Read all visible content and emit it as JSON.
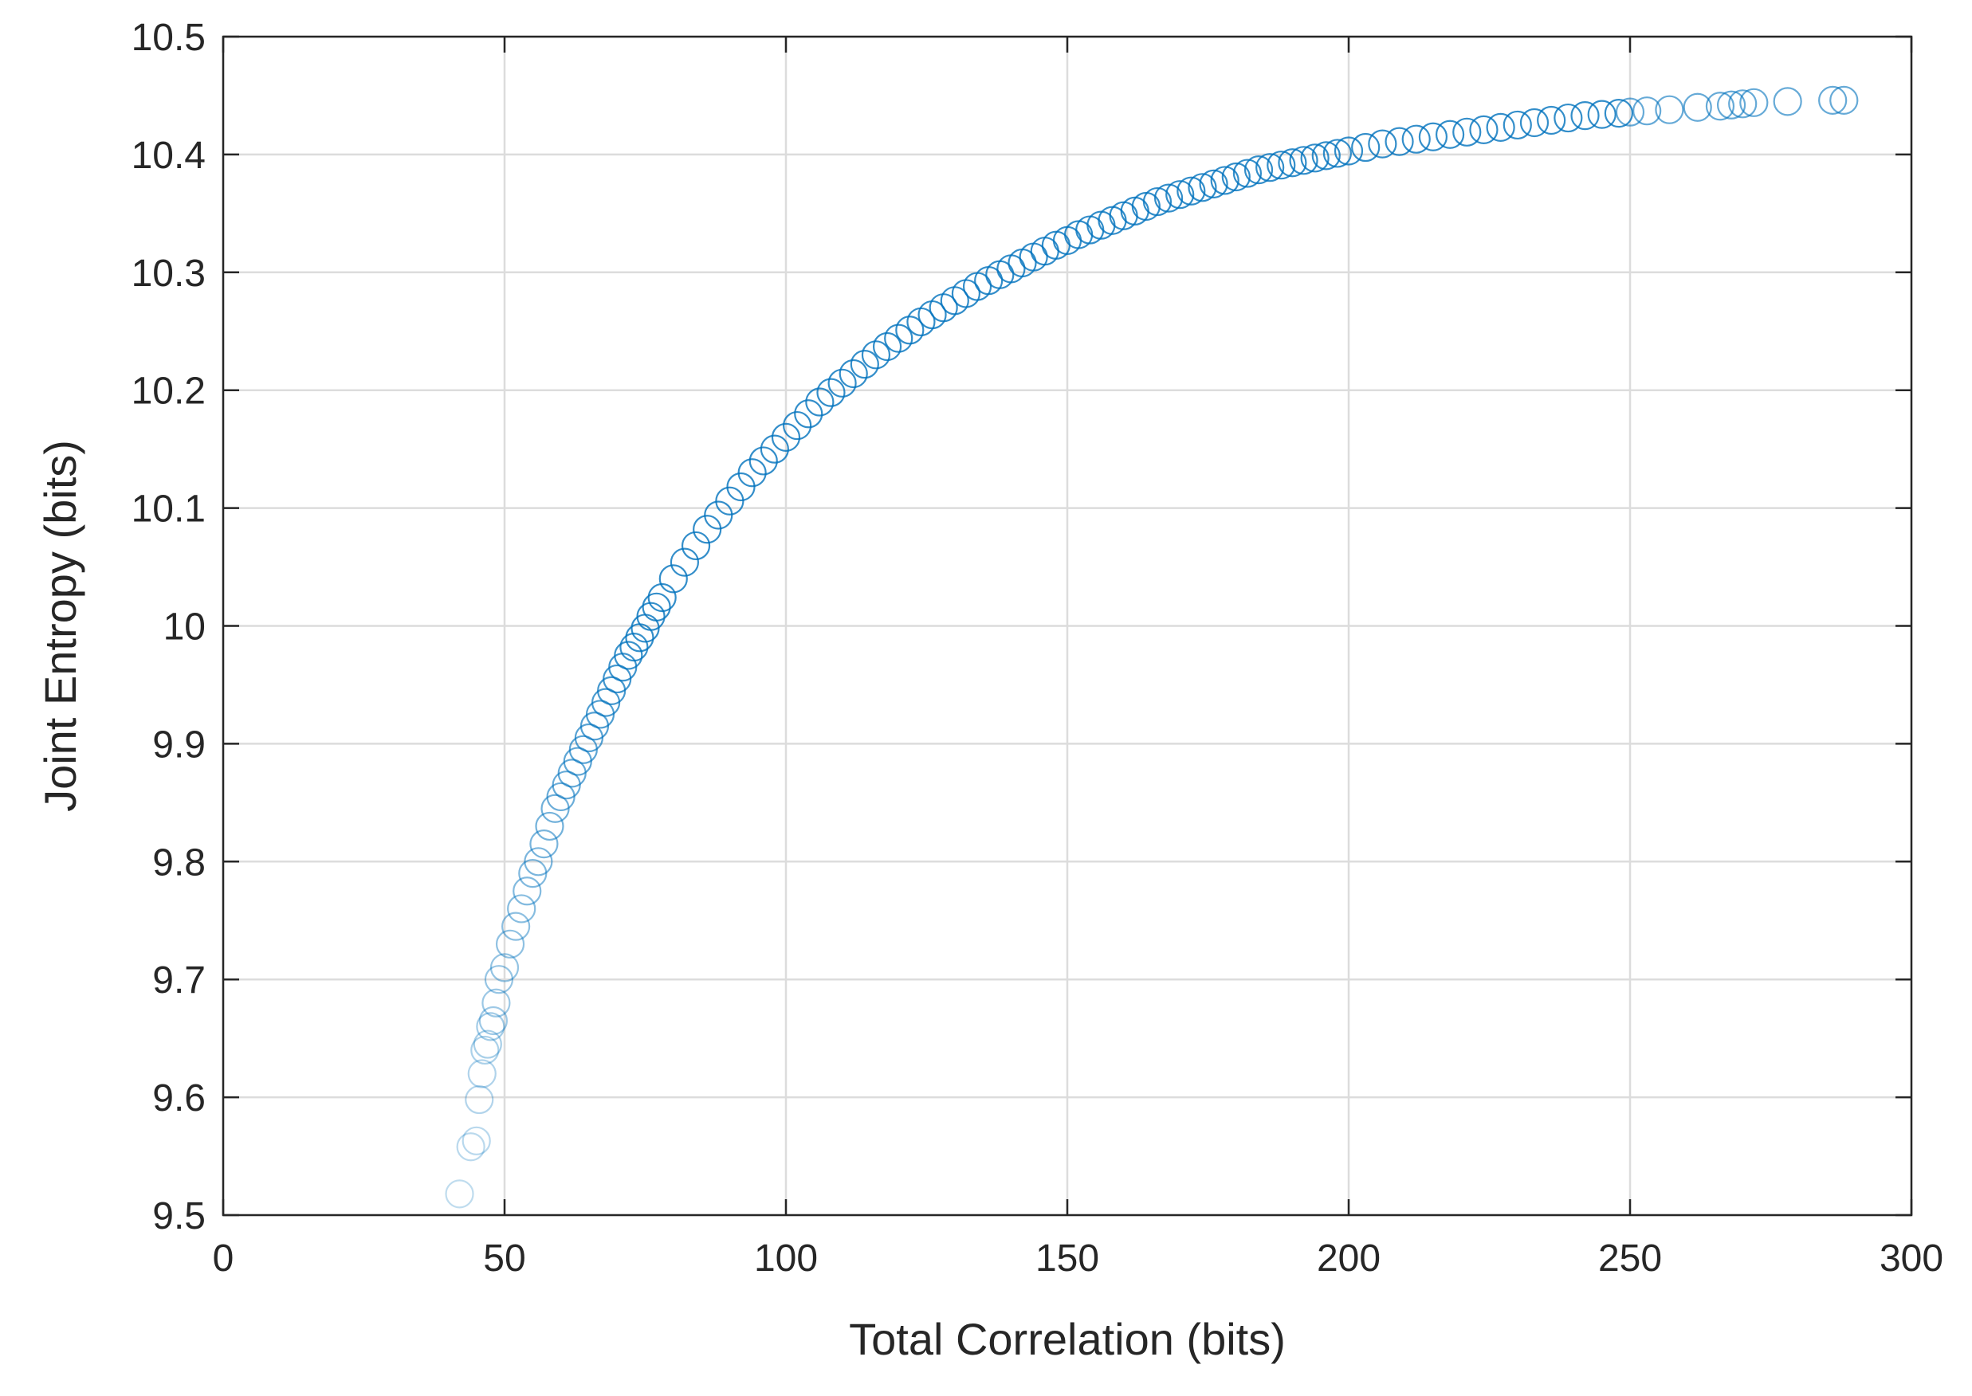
{
  "chart_data": {
    "type": "scatter",
    "title": "",
    "xlabel": "Total Correlation (bits)",
    "ylabel": "Joint Entropy (bits)",
    "xlim": [
      0,
      300
    ],
    "ylim": [
      9.5,
      10.5
    ],
    "xticks": [
      "0",
      "50",
      "100",
      "150",
      "200",
      "250",
      "300"
    ],
    "yticks": [
      "9.5",
      "9.6",
      "9.7",
      "9.8",
      "9.9",
      "10",
      "10.1",
      "10.2",
      "10.3",
      "10.4",
      "10.5"
    ],
    "grid": true,
    "marker": "open-circle",
    "marker_color": "#0072BD",
    "series": [
      {
        "x": [
          42,
          44,
          45,
          45.5,
          46,
          46.5,
          47,
          47.5,
          48,
          48.5,
          49,
          50,
          51,
          52,
          53,
          54,
          55,
          56,
          57,
          58,
          59,
          60,
          61,
          62,
          63,
          64,
          65,
          66,
          67,
          68,
          69,
          70,
          71,
          72,
          73,
          74,
          75,
          76,
          77,
          78,
          80,
          82,
          84,
          86,
          88,
          90,
          92,
          94,
          96,
          98,
          100,
          102,
          104,
          106,
          108,
          110,
          112,
          114,
          116,
          118,
          120,
          122,
          124,
          126,
          128,
          130,
          132,
          134,
          136,
          138,
          140,
          142,
          144,
          146,
          148,
          150,
          152,
          154,
          156,
          158,
          160,
          162,
          164,
          166,
          168,
          170,
          172,
          174,
          176,
          178,
          180,
          182,
          184,
          186,
          188,
          190,
          192,
          194,
          196,
          198,
          200,
          203,
          206,
          209,
          212,
          215,
          218,
          221,
          224,
          227,
          230,
          233,
          236,
          239,
          242,
          245,
          248,
          250,
          253,
          257,
          262,
          266,
          268,
          270,
          272,
          278,
          286,
          288
        ],
        "y": [
          9.518,
          9.558,
          9.563,
          9.598,
          9.62,
          9.64,
          9.645,
          9.66,
          9.665,
          9.68,
          9.7,
          9.71,
          9.73,
          9.745,
          9.76,
          9.775,
          9.79,
          9.8,
          9.815,
          9.83,
          9.845,
          9.855,
          9.865,
          9.875,
          9.885,
          9.895,
          9.905,
          9.915,
          9.925,
          9.935,
          9.945,
          9.955,
          9.965,
          9.975,
          9.982,
          9.99,
          9.998,
          10.008,
          10.016,
          10.024,
          10.04,
          10.054,
          10.068,
          10.082,
          10.094,
          10.106,
          10.118,
          10.13,
          10.14,
          10.15,
          10.16,
          10.17,
          10.18,
          10.19,
          10.198,
          10.206,
          10.214,
          10.222,
          10.23,
          10.237,
          10.244,
          10.251,
          10.258,
          10.264,
          10.27,
          10.276,
          10.282,
          10.288,
          10.293,
          10.298,
          10.303,
          10.308,
          10.313,
          10.318,
          10.323,
          10.327,
          10.332,
          10.336,
          10.34,
          10.344,
          10.348,
          10.352,
          10.356,
          10.36,
          10.363,
          10.366,
          10.369,
          10.372,
          10.375,
          10.378,
          10.381,
          10.384,
          10.387,
          10.389,
          10.391,
          10.393,
          10.395,
          10.397,
          10.399,
          10.401,
          10.403,
          10.406,
          10.409,
          10.411,
          10.413,
          10.415,
          10.417,
          10.419,
          10.421,
          10.423,
          10.425,
          10.427,
          10.429,
          10.431,
          10.433,
          10.434,
          10.435,
          10.436,
          10.437,
          10.438,
          10.44,
          10.441,
          10.442,
          10.443,
          10.444,
          10.445,
          10.446,
          10.446
        ]
      }
    ]
  }
}
